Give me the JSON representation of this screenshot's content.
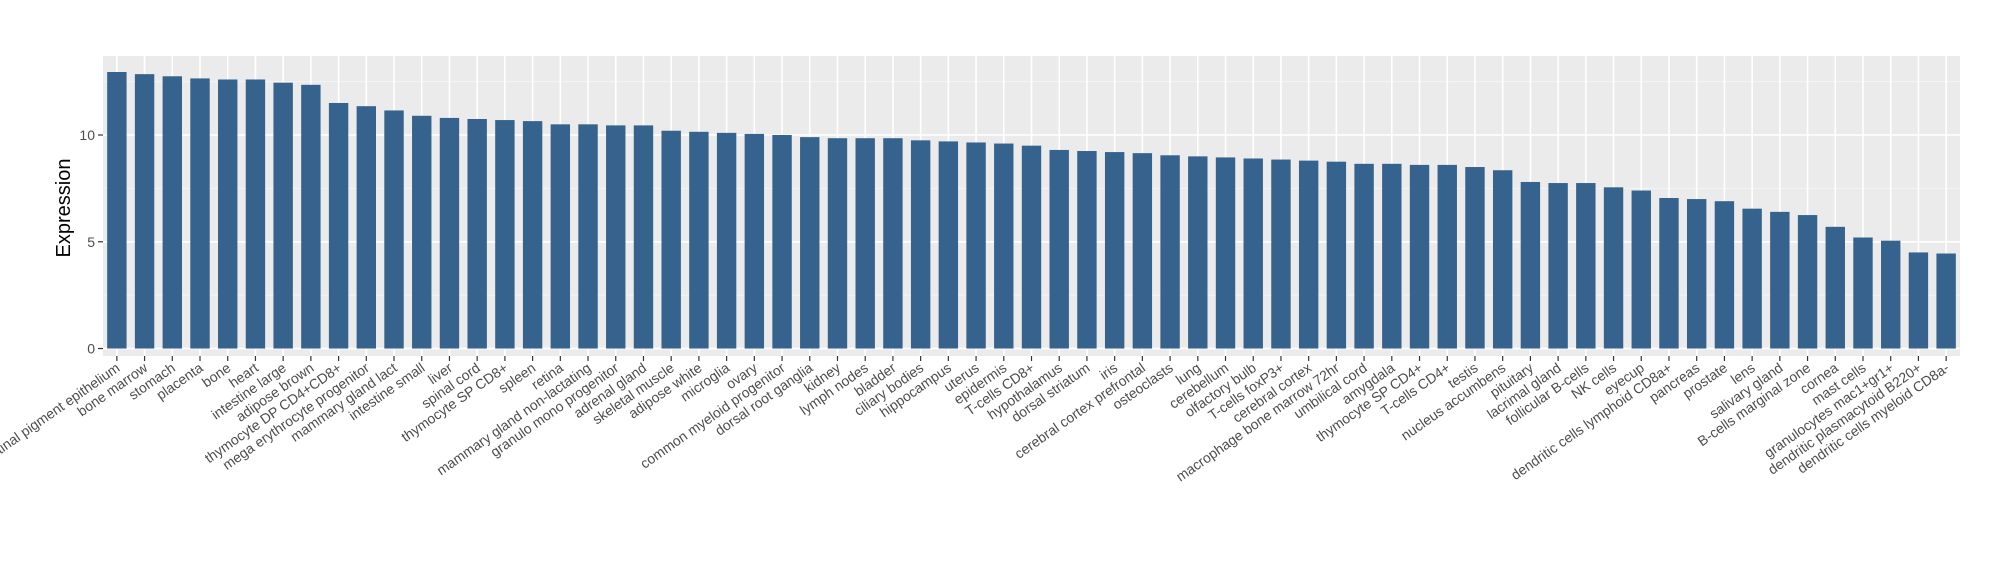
{
  "chart_data": {
    "type": "bar",
    "title": "",
    "xlabel": "",
    "ylabel": "Expression",
    "ylim": [
      -0.35,
      13.7
    ],
    "yticks": [
      0,
      5,
      10
    ],
    "grid": true,
    "legend": "none",
    "colors": {
      "bar": "#35638d",
      "panel": "#ebebeb",
      "grid_major": "#ffffff",
      "axis_text": "#4d4d4d",
      "title_text": "#000000"
    },
    "categories": [
      "retinal pigment epithelium",
      "bone marrow",
      "stomach",
      "placenta",
      "bone",
      "heart",
      "intestine large",
      "adipose brown",
      "thymocyte DP CD4+CD8+",
      "mega erythrocyte progenitor",
      "mammary gland  lact",
      "intestine small",
      "liver",
      "spinal cord",
      "thymocyte SP CD8+",
      "spleen",
      "retina",
      "mammary gland non-lactating",
      "granulo mono progenitor",
      "adrenal gland",
      "skeletal muscle",
      "adipose white",
      "microglia",
      "ovary",
      "common myeloid progenitor",
      "dorsal root ganglia",
      "kidney",
      "lymph nodes",
      "bladder",
      "ciliary bodies",
      "hippocampus",
      "uterus",
      "epidermis",
      "T-cells CD8+",
      "hypothalamus",
      "dorsal striatum",
      "iris",
      "cerebral cortex  prefrontal",
      "osteoclasts",
      "lung",
      "cerebellum",
      "olfactory bulb",
      "T-cells foxP3+",
      "cerebral cortex",
      "macrophage bone marrow 72hr",
      "umbilical cord",
      "amygdala",
      "thymocyte SP CD4+",
      "T-cells CD4+",
      "testis",
      "nucleus accumbens",
      "pituitary",
      "lacrimal gland",
      "follicular B-cells",
      "NK cells",
      "eyecup",
      "dendritic cells lymphoid CD8a+",
      "pancreas",
      "prostate",
      "lens",
      "salivary gland",
      "B-cells marginal zone",
      "cornea",
      "mast cells",
      "granulocytes mac1+gr1+",
      "dendritic plasmacytoid B220+",
      "dendritic cells myeloid CD8a-"
    ],
    "values": [
      12.95,
      12.85,
      12.75,
      12.65,
      12.6,
      12.6,
      12.45,
      12.35,
      11.5,
      11.35,
      11.15,
      10.9,
      10.8,
      10.75,
      10.7,
      10.65,
      10.5,
      10.5,
      10.45,
      10.45,
      10.2,
      10.15,
      10.1,
      10.05,
      10.0,
      9.9,
      9.85,
      9.85,
      9.85,
      9.75,
      9.7,
      9.65,
      9.6,
      9.5,
      9.3,
      9.25,
      9.2,
      9.15,
      9.05,
      9.0,
      8.95,
      8.9,
      8.85,
      8.8,
      8.75,
      8.65,
      8.65,
      8.6,
      8.6,
      8.5,
      8.35,
      7.8,
      7.75,
      7.75,
      7.55,
      7.4,
      7.05,
      7.0,
      6.9,
      6.55,
      6.4,
      6.25,
      5.7,
      5.2,
      5.05,
      4.5,
      4.45
    ]
  }
}
